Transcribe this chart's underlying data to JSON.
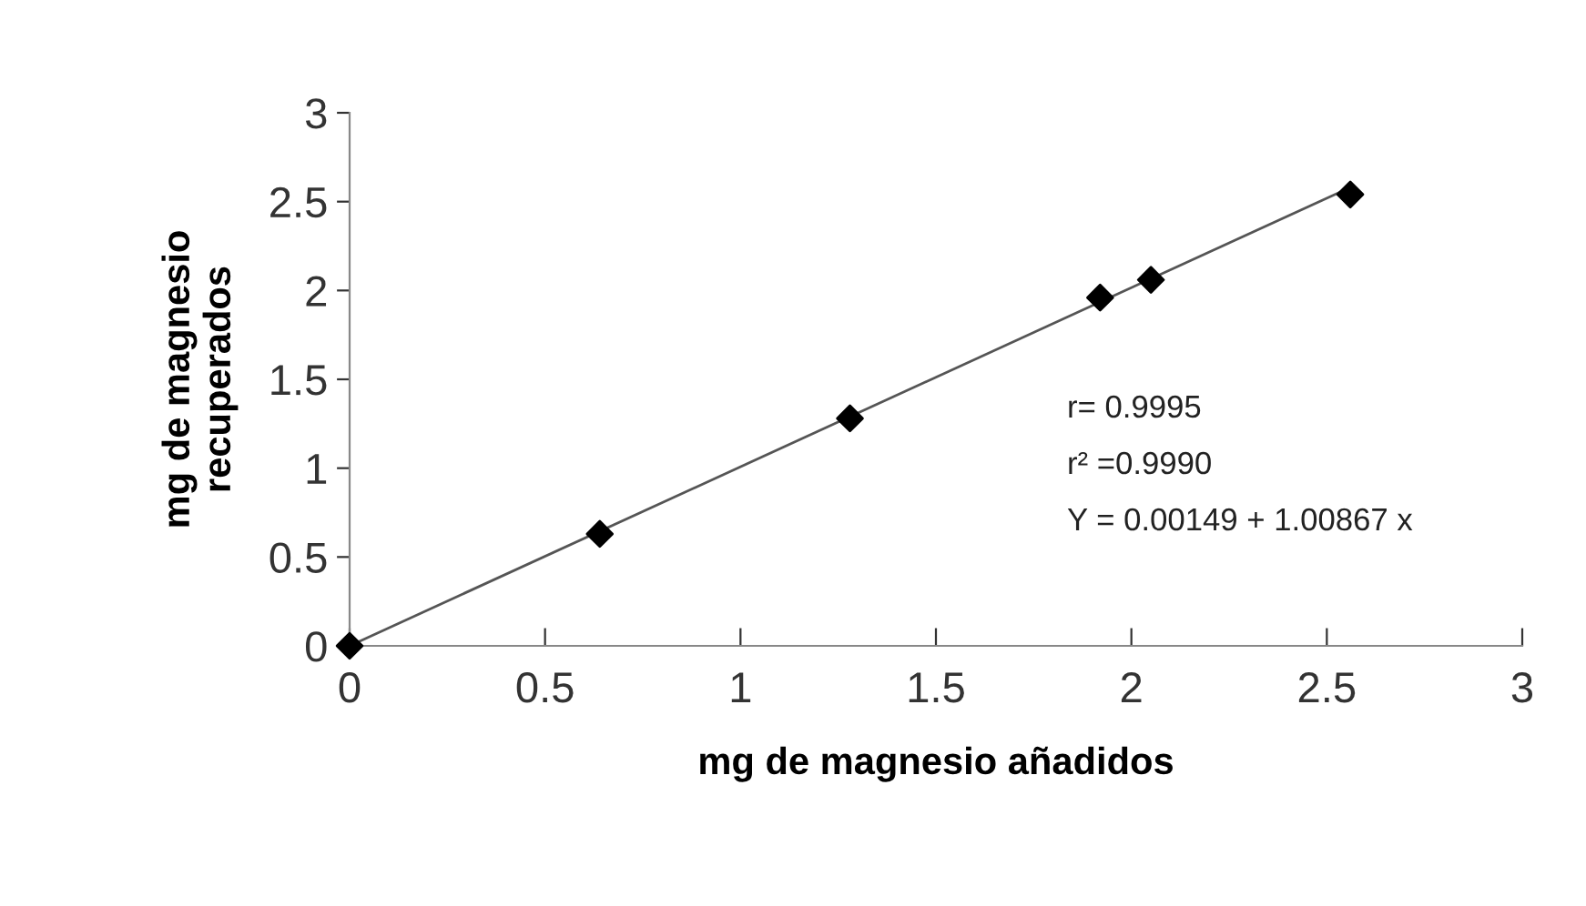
{
  "chart_data": {
    "type": "scatter",
    "xlabel": "mg de magnesio añadidos",
    "ylabel": "mg de magnesio\nrecuperados",
    "series": [
      {
        "color": "#000000",
        "marker": "diamond",
        "x": [
          0,
          0.64,
          1.28,
          1.92,
          2.05,
          2.56
        ],
        "values": [
          0,
          0.63,
          1.28,
          1.96,
          2.06,
          2.54
        ]
      },
      {
        "type": "line",
        "color": "#555555",
        "marker": "none",
        "line_style": "solid",
        "x": [
          0,
          2.56
        ],
        "values": [
          0,
          2.58
        ]
      }
    ],
    "xlim": [
      0,
      3
    ],
    "xticks": [
      0,
      0.5,
      1,
      1.5,
      2,
      2.5,
      3
    ],
    "ylim": [
      0,
      3
    ],
    "yticks": [
      0,
      0.5,
      1,
      1.5,
      2,
      2.5,
      3
    ],
    "grid": false,
    "legend": false,
    "annotations": [
      "r= 0.9995",
      "r² =0.9990",
      "Y = 0.00149 + 1.00867 x"
    ]
  }
}
